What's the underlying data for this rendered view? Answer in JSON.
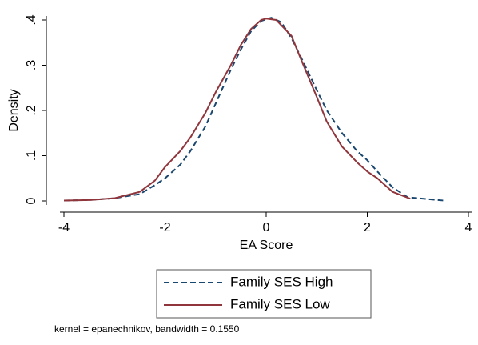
{
  "chart_data": {
    "type": "line",
    "x_label": "EA Score",
    "y_label": "Density",
    "note": "kernel = epanechnikov, bandwidth = 0.1550",
    "xlim": [
      -4,
      4
    ],
    "xticks": [
      -4,
      -2,
      0,
      2,
      4
    ],
    "ylim": [
      0,
      0.4
    ],
    "yticks": [
      0,
      {
        "value": 0.1,
        "label": ".1"
      },
      {
        "value": 0.2,
        "label": ".2"
      },
      {
        "value": 0.3,
        "label": ".3"
      },
      {
        "value": 0.4,
        "label": ".4"
      }
    ],
    "grid": false,
    "series": [
      {
        "name": "Family SES High",
        "color": "#1a476f",
        "dash": true,
        "x": [
          -4,
          -3.5,
          -3,
          -2.5,
          -2.2,
          -2,
          -1.7,
          -1.5,
          -1.2,
          -1,
          -0.7,
          -0.5,
          -0.3,
          -0.1,
          0.1,
          0.3,
          0.5,
          0.7,
          1,
          1.2,
          1.5,
          1.8,
          2,
          2.2,
          2.5,
          2.8,
          3,
          3.5
        ],
        "values": [
          0.001,
          0.002,
          0.006,
          0.015,
          0.035,
          0.05,
          0.08,
          0.11,
          0.165,
          0.215,
          0.29,
          0.335,
          0.375,
          0.398,
          0.405,
          0.395,
          0.36,
          0.315,
          0.245,
          0.2,
          0.15,
          0.11,
          0.09,
          0.065,
          0.03,
          0.008,
          0.006,
          0.001
        ]
      },
      {
        "name": "Family SES Low",
        "color": "#90353b",
        "dash": false,
        "x": [
          -4,
          -3.5,
          -3,
          -2.5,
          -2.2,
          -2,
          -1.7,
          -1.5,
          -1.2,
          -1,
          -0.7,
          -0.5,
          -0.3,
          -0.1,
          0,
          0.2,
          0.5,
          0.7,
          1,
          1.2,
          1.5,
          1.8,
          2,
          2.2,
          2.5,
          2.85
        ],
        "values": [
          0.001,
          0.002,
          0.006,
          0.02,
          0.045,
          0.075,
          0.11,
          0.14,
          0.195,
          0.24,
          0.3,
          0.345,
          0.38,
          0.4,
          0.403,
          0.4,
          0.365,
          0.31,
          0.23,
          0.175,
          0.12,
          0.085,
          0.065,
          0.05,
          0.02,
          0.005
        ]
      }
    ]
  }
}
